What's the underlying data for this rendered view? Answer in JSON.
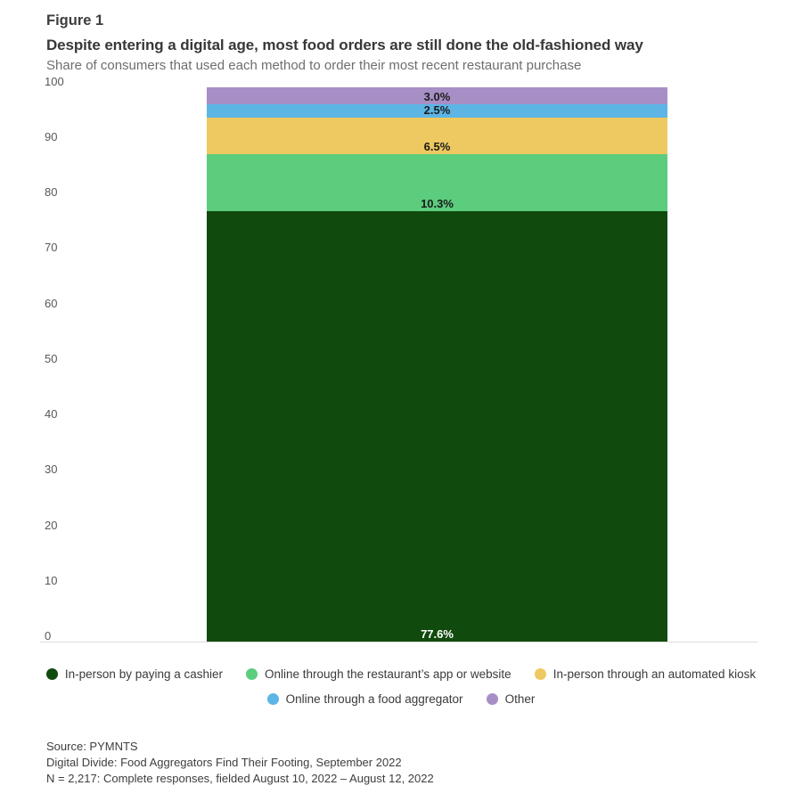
{
  "figure_label": "Figure 1",
  "title": "Despite entering a digital age, most food orders are still done the old-fashioned way",
  "subtitle": "Share of consumers that used each method to order their most recent restaurant purchase",
  "chart_data": {
    "type": "bar",
    "stacked": true,
    "orientation": "vertical",
    "title": "Despite entering a digital age, most food orders are still done the old-fashioned way",
    "xlabel": "",
    "ylabel": "",
    "ylim": [
      0,
      100
    ],
    "yticks": [
      0,
      10,
      20,
      30,
      40,
      50,
      60,
      70,
      80,
      90,
      100
    ],
    "grid": false,
    "legend_position": "bottom",
    "series": [
      {
        "name": "In-person by paying a cashier",
        "value": 77.6,
        "label": "77.6%",
        "color": "#114a0d",
        "label_color": "#ffffff"
      },
      {
        "name": "Online through the restaurant’s app or website",
        "value": 10.3,
        "label": "10.3%",
        "color": "#5ccd7d",
        "label_color": "#1b1b1b"
      },
      {
        "name": "In-person through an automated kiosk",
        "value": 6.5,
        "label": "6.5%",
        "color": "#eec860",
        "label_color": "#1b1b1b"
      },
      {
        "name": "Online through a food aggregator",
        "value": 2.5,
        "label": "2.5%",
        "color": "#5cb5e5",
        "label_color": "#1b1b1b"
      },
      {
        "name": "Other",
        "value": 3.0,
        "label": "3.0%",
        "color": "#a78fc6",
        "label_color": "#1b1b1b"
      }
    ],
    "legend_rows": [
      [
        0,
        1,
        2
      ],
      [
        3,
        4
      ]
    ]
  },
  "source": {
    "line1": "Source: PYMNTS",
    "line2": "Digital Divide: Food Aggregators Find Their Footing, September 2022",
    "line3": "N = 2,217: Complete responses, fielded August 10, 2022 – August 12, 2022"
  }
}
